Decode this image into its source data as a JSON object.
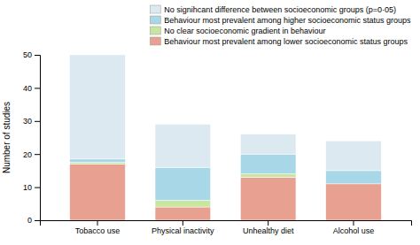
{
  "chart_data": {
    "type": "bar",
    "stacked": true,
    "categories": [
      "Tobacco use",
      "Physical inactivity",
      "Unhealthy diet",
      "Alcohol use"
    ],
    "series": [
      {
        "name": "Behaviour most prevalent among lower socioeconomic status groups",
        "color": "#e8a090",
        "values": [
          17,
          4,
          13,
          11
        ]
      },
      {
        "name": "No clear socioeconomic gradient in behaviour",
        "color": "#c8e6a0",
        "values": [
          0.5,
          2,
          1,
          0
        ]
      },
      {
        "name": "Behaviour most prevalent among higher socioeconomic status groups",
        "color": "#a8d8e8",
        "values": [
          1,
          10,
          6,
          4
        ]
      },
      {
        "name": "No signihcant difference between socioeconomic groups (p=0·05)",
        "color": "#dce9f0",
        "values": [
          31.5,
          13,
          6,
          9
        ]
      }
    ],
    "ylabel": "Number of studies",
    "ylim": [
      0,
      50
    ],
    "yticks": [
      0,
      10,
      20,
      30,
      40,
      50
    ],
    "grid": false,
    "legend": "top"
  }
}
